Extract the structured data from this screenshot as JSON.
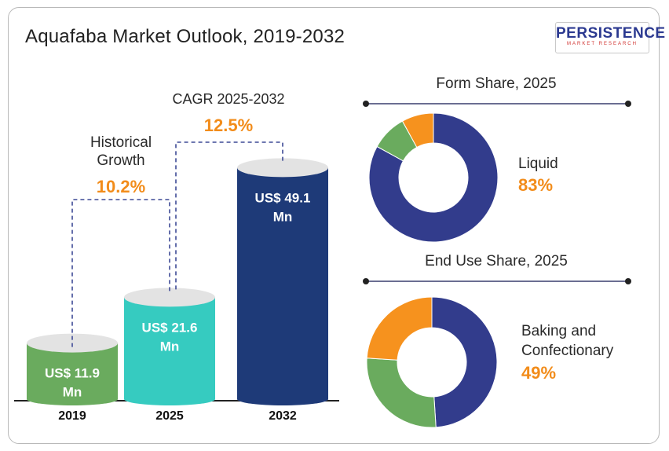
{
  "title": "Aquafaba Market Outlook, 2019-2032",
  "logo": {
    "name": "PERSISTENCE",
    "tagline": "MARKET RESEARCH"
  },
  "chart_data": [
    {
      "type": "bar",
      "categories": [
        "2019",
        "2025",
        "2032"
      ],
      "values": [
        11.9,
        21.6,
        49.1
      ],
      "value_labels": [
        "US$ 11.9 Mn",
        "US$ 21.6 Mn",
        "US$ 49.1 Mn"
      ],
      "colors": [
        "#6aab5e",
        "#36cbc0",
        "#1e3a78"
      ],
      "annotations": [
        {
          "label_lines": [
            "Historical",
            "Growth"
          ],
          "value": "10.2%",
          "from": "2019",
          "to": "2025"
        },
        {
          "label_lines": [
            "CAGR 2025-2032"
          ],
          "value": "12.5%",
          "from": "2025",
          "to": "2032"
        }
      ]
    },
    {
      "type": "pie",
      "title": "Form  Share, 2025",
      "highlight": {
        "label": "Liquid",
        "value": "83%"
      },
      "slices": [
        {
          "value": 83,
          "color": "#323c8c"
        },
        {
          "value": 9,
          "color": "#6aab5e"
        },
        {
          "value": 8,
          "color": "#f6921e"
        }
      ]
    },
    {
      "type": "pie",
      "title": "End Use Share, 2025",
      "highlight": {
        "label_lines": [
          "Baking and",
          "Confectionary"
        ],
        "value": "49%"
      },
      "slices": [
        {
          "value": 49,
          "color": "#323c8c"
        },
        {
          "value": 27,
          "color": "#6aab5e"
        },
        {
          "value": 24,
          "color": "#f6921e"
        }
      ]
    }
  ]
}
